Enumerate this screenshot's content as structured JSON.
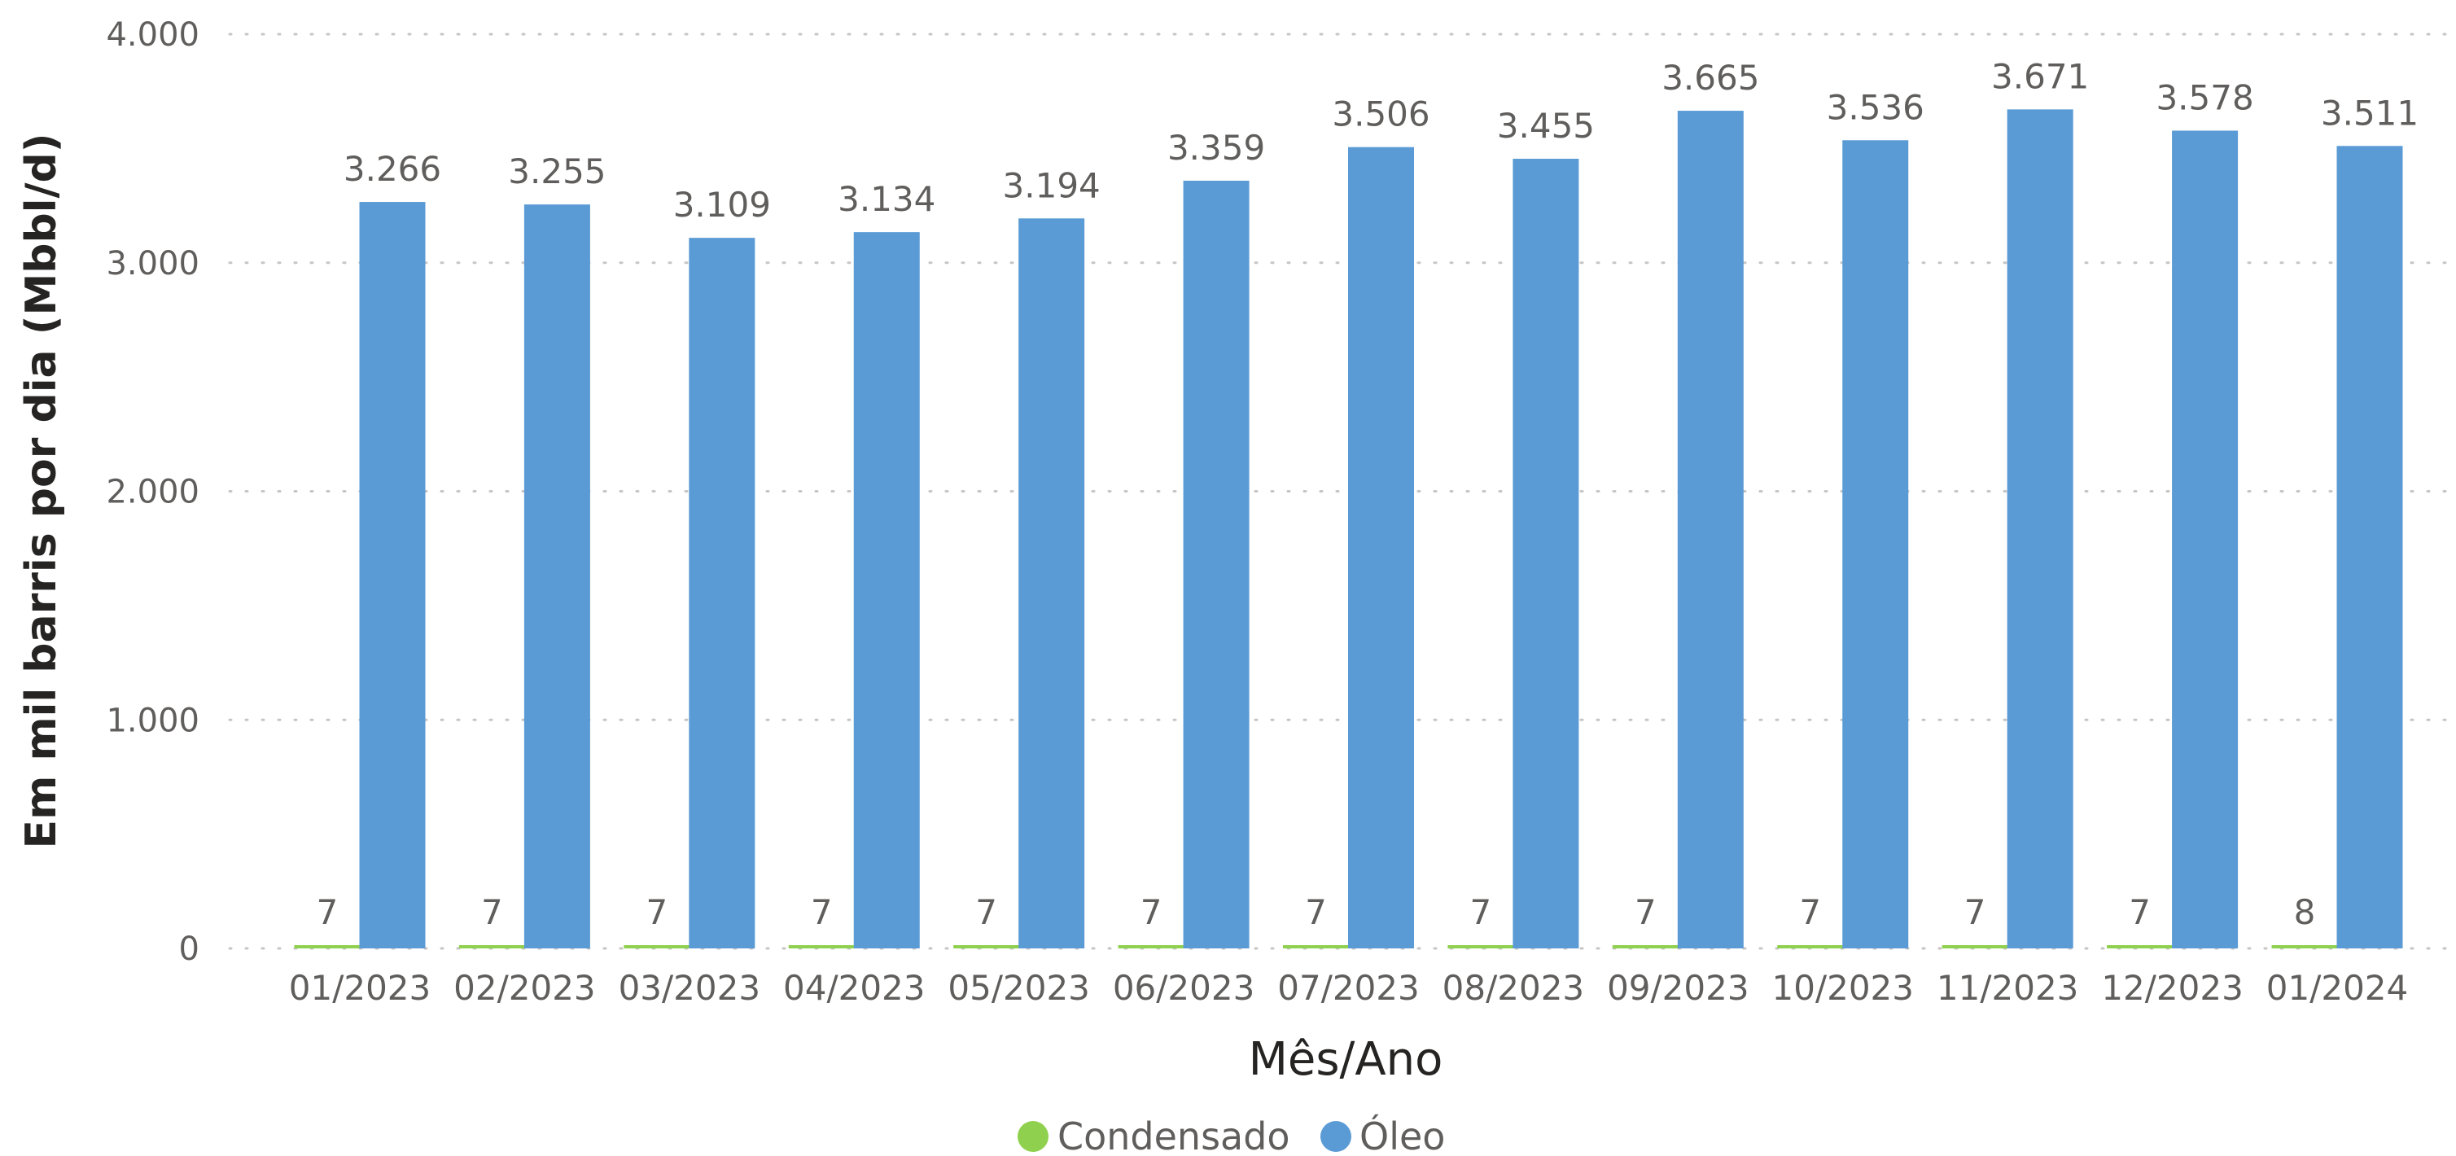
{
  "chart_data": {
    "type": "bar",
    "xlabel": "Mês/Ano",
    "ylabel": "Em mil barris por dia (Mbbl/d)",
    "ylim": [
      0,
      4000
    ],
    "yticks": [
      "0",
      "1.000",
      "2.000",
      "3.000",
      "4.000"
    ],
    "grid": true,
    "legend_position": "bottom-center",
    "categories": [
      "01/2023",
      "02/2023",
      "03/2023",
      "04/2023",
      "05/2023",
      "06/2023",
      "07/2023",
      "08/2023",
      "09/2023",
      "10/2023",
      "11/2023",
      "12/2023",
      "01/2024"
    ],
    "series": [
      {
        "name": "Condensado",
        "color": "#8fd14f",
        "values": [
          7,
          7,
          7,
          7,
          7,
          7,
          7,
          7,
          7,
          7,
          7,
          7,
          8
        ],
        "labels": [
          "7",
          "7",
          "7",
          "7",
          "7",
          "7",
          "7",
          "7",
          "7",
          "7",
          "7",
          "7",
          "8"
        ]
      },
      {
        "name": "Óleo",
        "color": "#5b9bd5",
        "values": [
          3266,
          3255,
          3109,
          3134,
          3194,
          3359,
          3506,
          3455,
          3665,
          3536,
          3671,
          3578,
          3511
        ],
        "labels": [
          "3.266",
          "3.255",
          "3.109",
          "3.134",
          "3.194",
          "3.359",
          "3.506",
          "3.455",
          "3.665",
          "3.536",
          "3.671",
          "3.578",
          "3.511"
        ]
      }
    ]
  }
}
